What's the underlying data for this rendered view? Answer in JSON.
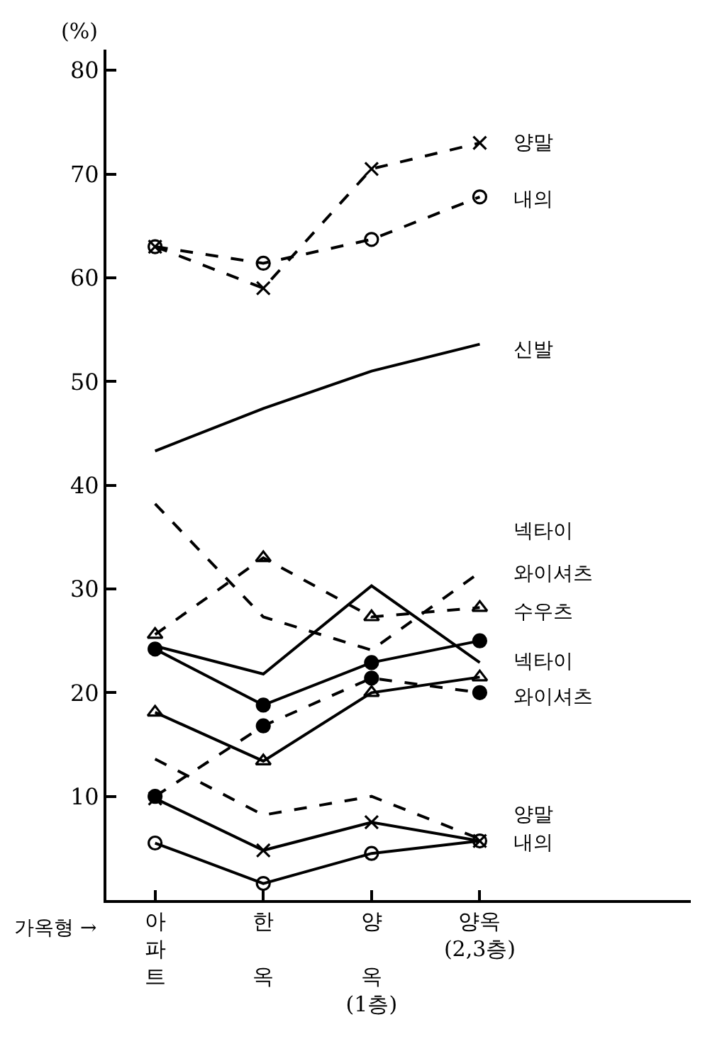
{
  "chart_data": {
    "type": "line",
    "ylabel": "(%)",
    "xlabel": "가옥형 →",
    "categories": [
      "아\n파\n트",
      "한\n\n옥",
      "양\n\n옥\n(1층)",
      "양옥\n(2,3층)"
    ],
    "ylim": [
      0,
      82
    ],
    "yticks": [
      10,
      20,
      30,
      40,
      50,
      60,
      70,
      80
    ],
    "legend": false,
    "series": [
      {
        "color": "#000000",
        "line_style": "dashed",
        "marker": "cross",
        "values": [
          63,
          59,
          70.5,
          73
        ]
      },
      {
        "color": "#000000",
        "line_style": "dashed",
        "marker": "circle-open",
        "values": [
          63,
          61.4,
          63.7,
          67.8
        ]
      },
      {
        "color": "#000000",
        "line_style": "solid",
        "marker": "none",
        "values": [
          43.3,
          47.4,
          51,
          53.6
        ]
      },
      {
        "color": "#000000",
        "line_style": "dashed",
        "marker": "none",
        "values": [
          38.2,
          27.3,
          24.1,
          31.6
        ]
      },
      {
        "color": "#000000",
        "line_style": "dashed",
        "marker": "triangle",
        "values": [
          25.6,
          33,
          27.3,
          28.2
        ]
      },
      {
        "color": "#000000",
        "line_style": "solid",
        "marker": "none",
        "values": [
          24.5,
          21.8,
          30.3,
          22.9
        ]
      },
      {
        "color": "#000000",
        "line_style": "solid",
        "marker": "circle",
        "values": [
          24.2,
          18.8,
          22.9,
          25
        ]
      },
      {
        "color": "#000000",
        "line_style": "dashed",
        "marker": "circle",
        "values": [
          10,
          16.8,
          21.4,
          20
        ]
      },
      {
        "color": "#000000",
        "line_style": "solid",
        "marker": "triangle",
        "values": [
          18.1,
          13.4,
          20,
          21.5
        ]
      },
      {
        "color": "#000000",
        "line_style": "dashed",
        "marker": "none",
        "values": [
          13.6,
          8.2,
          10,
          5.9
        ]
      },
      {
        "color": "#000000",
        "line_style": "solid",
        "marker": "cross",
        "values": [
          9.8,
          4.8,
          7.5,
          5.7
        ]
      },
      {
        "color": "#000000",
        "line_style": "solid",
        "marker": "circle-open",
        "values": [
          5.5,
          1.6,
          4.5,
          5.7
        ]
      }
    ],
    "annotations": [
      {
        "text": "양말",
        "x": "양옥\n(2,3층)",
        "y": 73
      },
      {
        "text": "내의",
        "x": "양옥\n(2,3층)",
        "y": 67.5
      },
      {
        "text": "신발",
        "x": "양옥\n(2,3층)",
        "y": 53
      },
      "넥타이",
      {
        "text": "와이셔츠",
        "x": "양옥\n(2,3층)",
        "y": 31.5
      },
      {
        "text": "수우츠",
        "x": "양옥\n(2,3층)",
        "y": 27.8
      },
      {
        "text": "넥타이",
        "x": "양옥\n(2,3층)",
        "y": 23
      },
      {
        "text": "와이셔츠",
        "x": "양옥\n(2,3층)",
        "y": 19.6
      },
      "양말",
      {
        "text": "내의",
        "x": "양옥\n(2,3층)",
        "y": 5.4
      }
    ]
  }
}
